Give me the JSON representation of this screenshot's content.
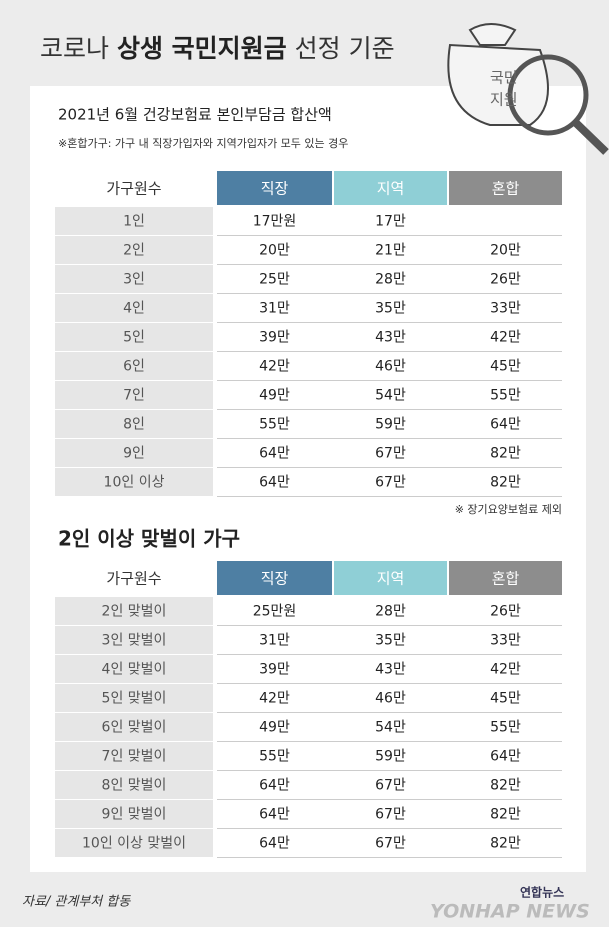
{
  "header": {
    "title_parts": [
      "코로나 ",
      "상생 국민지원금",
      " 선정 기준"
    ],
    "icon_text": [
      "국민",
      "지원"
    ]
  },
  "section1": {
    "title": "2021년 6월 건강보험료 본인부담금 합산액",
    "note": "※혼합가구: 가구 내 직장가입자와 지역가입자가 모두 있는 경우",
    "table": {
      "columns": [
        "가구원수",
        "직장",
        "지역",
        "혼합"
      ],
      "rows": [
        [
          "1인",
          "17만원",
          "17만",
          null
        ],
        [
          "2인",
          "20만",
          "21만",
          "20만"
        ],
        [
          "3인",
          "25만",
          "28만",
          "26만"
        ],
        [
          "4인",
          "31만",
          "35만",
          "33만"
        ],
        [
          "5인",
          "39만",
          "43만",
          "42만"
        ],
        [
          "6인",
          "42만",
          "46만",
          "45만"
        ],
        [
          "7인",
          "49만",
          "54만",
          "55만"
        ],
        [
          "8인",
          "55만",
          "59만",
          "64만"
        ],
        [
          "9인",
          "64만",
          "67만",
          "82만"
        ],
        [
          "10인 이상",
          "64만",
          "67만",
          "82만"
        ]
      ]
    },
    "footnote": "※ 장기요양보험료 제외"
  },
  "section2": {
    "title": "2인 이상 맞벌이 가구",
    "table": {
      "columns": [
        "가구원수",
        "직장",
        "지역",
        "혼합"
      ],
      "rows": [
        [
          "2인 맞벌이",
          "25만원",
          "28만",
          "26만"
        ],
        [
          "3인 맞벌이",
          "31만",
          "35만",
          "33만"
        ],
        [
          "4인 맞벌이",
          "39만",
          "43만",
          "42만"
        ],
        [
          "5인 맞벌이",
          "42만",
          "46만",
          "45만"
        ],
        [
          "6인 맞벌이",
          "49만",
          "54만",
          "55만"
        ],
        [
          "7인 맞벌이",
          "55만",
          "59만",
          "64만"
        ],
        [
          "8인 맞벌이",
          "64만",
          "67만",
          "82만"
        ],
        [
          "9인 맞벌이",
          "64만",
          "67만",
          "82만"
        ],
        [
          "10인 이상 맞벌이",
          "64만",
          "67만",
          "82만"
        ]
      ]
    }
  },
  "footer": {
    "source": "자료/ 관계부처 합동",
    "logo_korean": "연합뉴스",
    "logo_english": "YONHAP NEWS"
  }
}
